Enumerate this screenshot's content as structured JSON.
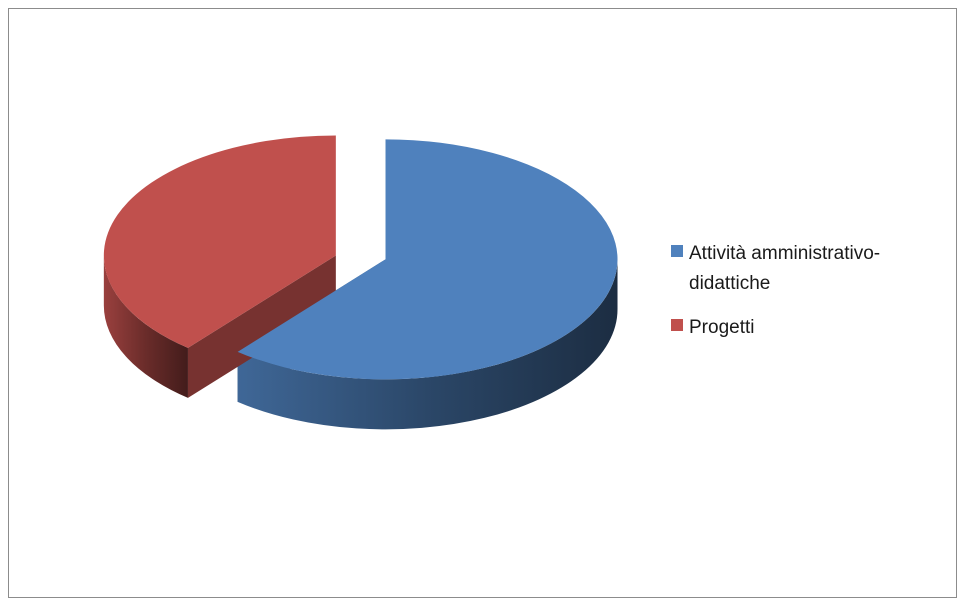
{
  "chart_data": {
    "type": "pie",
    "title": "",
    "style": "3d-exploded",
    "legend_position": "right",
    "slices": [
      {
        "label": "Attività amministrativo-didattiche",
        "value": 61,
        "color": "#4f81bd"
      },
      {
        "label": "Progetti",
        "value": 39,
        "color": "#c0504d"
      }
    ]
  }
}
